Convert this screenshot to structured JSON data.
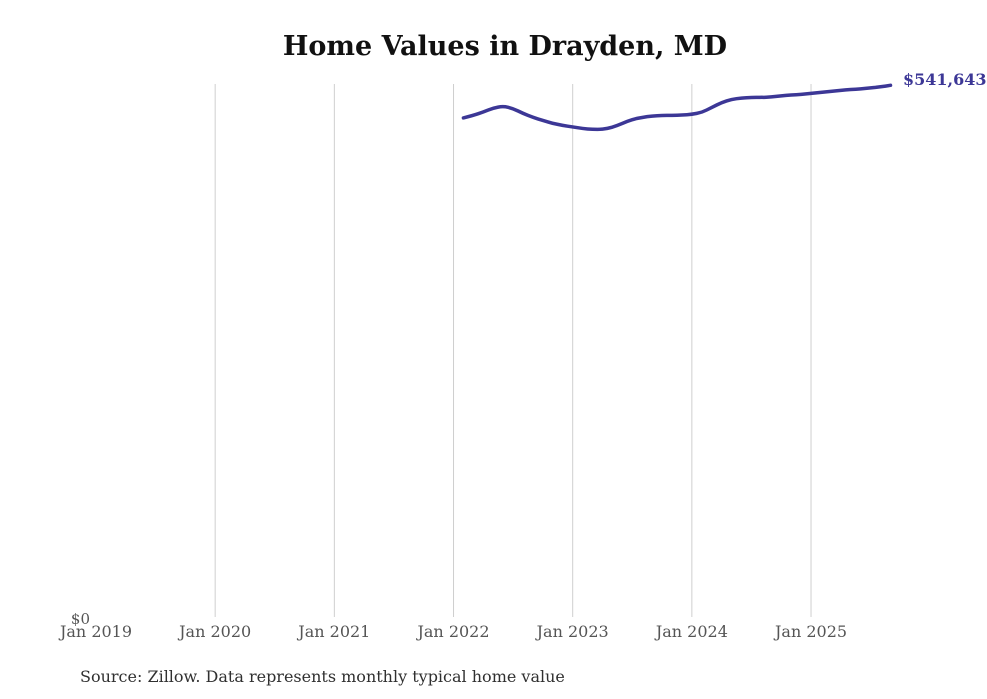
{
  "title": "Home Values in Drayden, MD",
  "source_note": "Source: Zillow. Data represents monthly typical home value",
  "end_label": "$541,643",
  "y_axis": {
    "zero_label": "$0"
  },
  "colors": {
    "line": "#3c3796",
    "grid": "#cfcfcf",
    "axis_text": "#555555",
    "title_text": "#111111",
    "end_label_text": "#3c3796"
  },
  "chart_data": {
    "type": "line",
    "title": "Home Values in Drayden, MD",
    "xlabel": "",
    "ylabel": "",
    "ylim": [
      0,
      543000
    ],
    "grid": "vertical-only",
    "legend": "none",
    "x_tick_labels": [
      "Jan 2019",
      "Jan 2020",
      "Jan 2021",
      "Jan 2022",
      "Jan 2023",
      "Jan 2024",
      "Jan 2025"
    ],
    "gridline_ticks": [
      "Jan 2020",
      "Jan 2021",
      "Jan 2022",
      "Jan 2023",
      "Jan 2024",
      "Jan 2025"
    ],
    "end_annotation": "$541,643",
    "series": [
      {
        "name": "Monthly typical home value",
        "months": [
          "2022-02",
          "2022-03",
          "2022-04",
          "2022-05",
          "2022-06",
          "2022-07",
          "2022-08",
          "2022-09",
          "2022-10",
          "2022-11",
          "2022-12",
          "2023-01",
          "2023-02",
          "2023-03",
          "2023-04",
          "2023-05",
          "2023-06",
          "2023-07",
          "2023-08",
          "2023-09",
          "2023-10",
          "2023-11",
          "2023-12",
          "2024-01",
          "2024-02",
          "2024-03",
          "2024-04",
          "2024-05",
          "2024-06",
          "2024-07",
          "2024-08",
          "2024-09",
          "2024-10",
          "2024-11",
          "2024-12",
          "2025-01",
          "2025-02",
          "2025-03",
          "2025-04",
          "2025-05",
          "2025-06",
          "2025-07",
          "2025-08",
          "2025-09"
        ],
        "values": [
          508500,
          511000,
          514500,
          518500,
          520500,
          518000,
          513000,
          509000,
          505900,
          502800,
          500800,
          499300,
          497700,
          496700,
          496700,
          498800,
          502800,
          506900,
          509000,
          510500,
          511000,
          511000,
          511500,
          512000,
          514000,
          519100,
          524200,
          527300,
          528800,
          529300,
          529300,
          529800,
          530900,
          531900,
          532400,
          533400,
          534400,
          535500,
          536500,
          537500,
          538000,
          539000,
          540100,
          541643
        ]
      }
    ]
  }
}
